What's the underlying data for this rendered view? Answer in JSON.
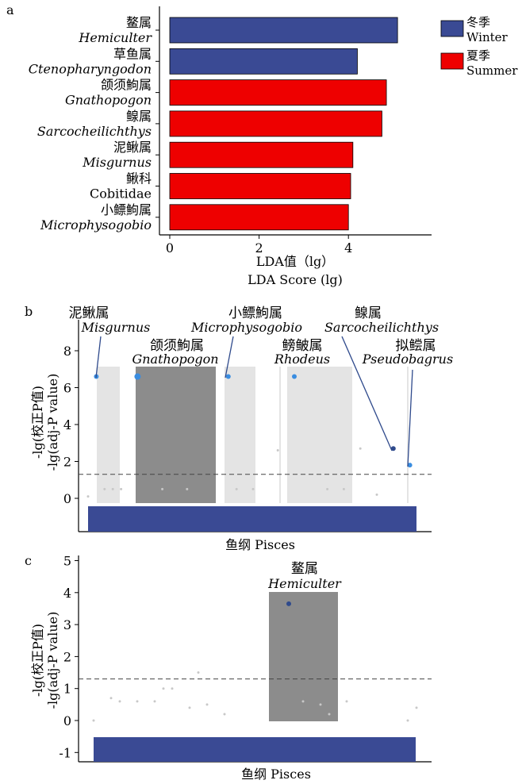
{
  "panel_labels": [
    "a",
    "b",
    "c"
  ],
  "colors": {
    "winter": "#3a4a94",
    "summer": "#ee0000",
    "highlight_dark": "#8c8c8c",
    "highlight_light": "#e4e4e4",
    "point_blue": "#3a8de0",
    "point_dark": "#2f4a8c",
    "pisces_bar": "#3a4a94"
  },
  "chart_data": [
    {
      "type": "bar",
      "orientation": "horizontal",
      "categories": [
        {
          "zh": "鳌属",
          "latin": "Hemiculter",
          "italic": true
        },
        {
          "zh": "草鱼属",
          "latin": "Ctenopharyngodon",
          "italic": true
        },
        {
          "zh": "颌须鮈属",
          "latin": "Gnathopogon",
          "italic": true
        },
        {
          "zh": "鳈属",
          "latin": "Sarcocheilichthys",
          "italic": true
        },
        {
          "zh": "泥鳅属",
          "latin": "Misgurnus",
          "italic": true
        },
        {
          "zh": "鳅科",
          "latin": "Cobitidae",
          "italic": false
        },
        {
          "zh": "小鳔鮈属",
          "latin": "Microphysogobio",
          "italic": true
        }
      ],
      "values": [
        5.1,
        4.2,
        4.85,
        4.75,
        4.1,
        4.05,
        4.0
      ],
      "groups": [
        "winter",
        "winter",
        "summer",
        "summer",
        "summer",
        "summer",
        "summer"
      ],
      "xlim": [
        -0.2,
        5.8
      ],
      "xticks": [
        "0",
        "2",
        "4"
      ],
      "xlabel_zh": "LDA值（lg）",
      "xlabel_en": "LDA Score (lg)",
      "legend": [
        {
          "key": "winter",
          "zh": "冬季",
          "en": "Winter"
        },
        {
          "key": "summer",
          "zh": "夏季",
          "en": "Summer"
        }
      ],
      "legend_position": "top-right"
    },
    {
      "type": "scatter",
      "ylabel_zh": "-lg(校正P值)",
      "ylabel_en": "-lg(adj-P value)",
      "xlabel": "鱼纲 Pisces",
      "ylim": [
        -1.6,
        9.3
      ],
      "yticks": [
        "0",
        "2",
        "4",
        "6",
        "8"
      ],
      "threshold": 1.3,
      "annotations": [
        {
          "zh": "泥鳅属",
          "latin": "Misgurnus"
        },
        {
          "zh": "颌须鮈属",
          "latin": "Gnathopogon"
        },
        {
          "zh": "小鳔鮈属",
          "latin": "Microphysogobio"
        },
        {
          "zh": "鳑鲏属",
          "latin": "Rhodeus"
        },
        {
          "zh": "鳈属",
          "latin": "Sarcocheilichthys"
        },
        {
          "zh": "拟鲿属",
          "latin": "Pseudobagrus"
        }
      ],
      "points": [
        {
          "x": 1,
          "y": 6.6,
          "sig": true
        },
        {
          "x": 6,
          "y": 6.6,
          "sig": true
        },
        {
          "x": 17,
          "y": 6.6,
          "sig": true
        },
        {
          "x": 25,
          "y": 6.6,
          "sig": true
        },
        {
          "x": 37,
          "y": 2.7,
          "sig": true
        },
        {
          "x": 39,
          "y": 1.8,
          "sig": true
        },
        {
          "x": 2,
          "y": 0.5,
          "sig": false
        },
        {
          "x": 3,
          "y": 0.5,
          "sig": false
        },
        {
          "x": 4,
          "y": 0.5,
          "sig": false
        },
        {
          "x": 9,
          "y": 0.5,
          "sig": false
        },
        {
          "x": 12,
          "y": 0.5,
          "sig": false
        },
        {
          "x": 18,
          "y": 0.5,
          "sig": false
        },
        {
          "x": 20,
          "y": 0.5,
          "sig": false
        },
        {
          "x": 23,
          "y": 2.6,
          "sig": false
        },
        {
          "x": 29,
          "y": 0.5,
          "sig": false
        },
        {
          "x": 31,
          "y": 0.5,
          "sig": false
        },
        {
          "x": 33,
          "y": 2.7,
          "sig": false
        },
        {
          "x": 35,
          "y": 0.2,
          "sig": false
        },
        {
          "x": 0,
          "y": 0.1,
          "sig": false
        }
      ]
    },
    {
      "type": "scatter",
      "ylabel_zh": "-lg(校正P值)",
      "ylabel_en": "-lg(adj-P value)",
      "xlabel": "鱼纲 Pisces",
      "ylim": [
        -1.3,
        5.1
      ],
      "yticks": [
        "-1",
        "0",
        "1",
        "2",
        "3",
        "4",
        "5"
      ],
      "threshold": 1.3,
      "annotations": [
        {
          "zh": "鳌属",
          "latin": "Hemiculter"
        }
      ],
      "points": [
        {
          "x": 22,
          "y": 3.65,
          "sig": true
        },
        {
          "x": 0,
          "y": 0.0,
          "sig": false
        },
        {
          "x": 2,
          "y": 0.7,
          "sig": false
        },
        {
          "x": 3,
          "y": 0.6,
          "sig": false
        },
        {
          "x": 5,
          "y": 0.6,
          "sig": false
        },
        {
          "x": 7,
          "y": 0.6,
          "sig": false
        },
        {
          "x": 8,
          "y": 1.0,
          "sig": false
        },
        {
          "x": 9,
          "y": 1.0,
          "sig": false
        },
        {
          "x": 11,
          "y": 0.4,
          "sig": false
        },
        {
          "x": 12,
          "y": 1.5,
          "sig": false
        },
        {
          "x": 13,
          "y": 0.5,
          "sig": false
        },
        {
          "x": 15,
          "y": 0.2,
          "sig": false
        },
        {
          "x": 24,
          "y": 0.6,
          "sig": false
        },
        {
          "x": 26,
          "y": 0.5,
          "sig": false
        },
        {
          "x": 27,
          "y": 0.2,
          "sig": false
        },
        {
          "x": 29,
          "y": 0.6,
          "sig": false
        },
        {
          "x": 36,
          "y": 0.0,
          "sig": false
        },
        {
          "x": 37,
          "y": 0.4,
          "sig": false
        }
      ]
    }
  ]
}
